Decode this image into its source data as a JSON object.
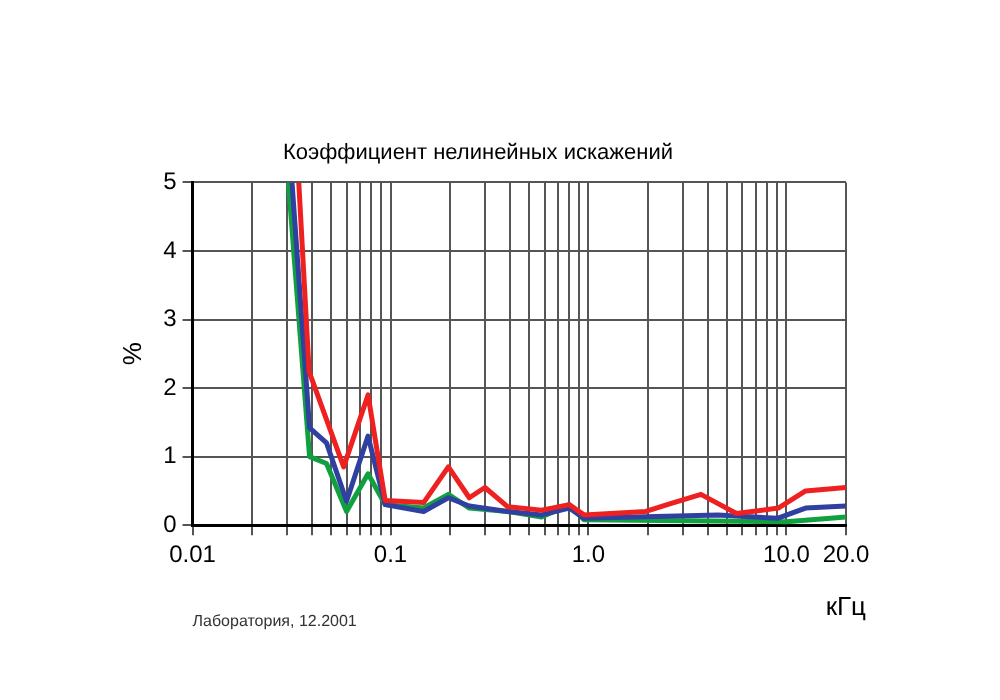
{
  "chart_data": {
    "type": "line",
    "title": "Коэффициент нелинейных искажений",
    "xlabel": "кГц",
    "ylabel": "%",
    "log": "x",
    "grid": true,
    "legend": false,
    "marker": "none",
    "line_style": "solid",
    "xlim": [
      0.01,
      20
    ],
    "ylim": [
      0,
      5
    ],
    "xticks": [
      0.01,
      {
        "value": 0.02,
        "label": null
      },
      {
        "value": 0.03,
        "label": null
      },
      {
        "value": 0.04,
        "label": null
      },
      {
        "value": 0.05,
        "label": null
      },
      {
        "value": 0.06,
        "label": null
      },
      {
        "value": 0.07,
        "label": null
      },
      {
        "value": 0.08,
        "label": null
      },
      {
        "value": 0.09,
        "label": null
      },
      0.1,
      {
        "value": 0.2,
        "label": null
      },
      {
        "value": 0.3,
        "label": null
      },
      {
        "value": 0.4,
        "label": null
      },
      {
        "value": 0.5,
        "label": null
      },
      {
        "value": 0.6,
        "label": null
      },
      {
        "value": 0.7,
        "label": null
      },
      {
        "value": 0.8,
        "label": null
      },
      {
        "value": 0.9,
        "label": null
      },
      {
        "value": 1,
        "label": "1.0"
      },
      {
        "value": 2,
        "label": null
      },
      {
        "value": 3,
        "label": null
      },
      {
        "value": 4,
        "label": null
      },
      {
        "value": 5,
        "label": null
      },
      {
        "value": 6,
        "label": null
      },
      {
        "value": 7,
        "label": null
      },
      {
        "value": 8,
        "label": null
      },
      {
        "value": 9,
        "label": null
      },
      {
        "value": 10,
        "label": "10.0"
      },
      {
        "value": 20,
        "label": "20.0"
      }
    ],
    "yticks": [
      0,
      1,
      2,
      3,
      4,
      5
    ],
    "annotations": [
      "Лаборатория, 12.2001"
    ],
    "series": [
      {
        "color": "#ee2020",
        "x": [
          0.0344,
          0.0388,
          0.058,
          0.077,
          0.094,
          0.147,
          0.196,
          0.25,
          0.3,
          0.39,
          0.58,
          0.8,
          0.95,
          1.95,
          2.5,
          3.7,
          5.6,
          9.1,
          12.5,
          20
        ],
        "values": [
          5,
          2.24,
          0.85,
          1.9,
          0.36,
          0.33,
          0.85,
          0.4,
          0.55,
          0.27,
          0.22,
          0.3,
          0.15,
          0.2,
          0.3,
          0.45,
          0.17,
          0.25,
          0.5,
          0.55
        ]
      },
      {
        "color": "#3040a0",
        "x": [
          0.0318,
          0.039,
          0.0475,
          0.06,
          0.077,
          0.094,
          0.147,
          0.196,
          0.25,
          0.39,
          0.58,
          0.8,
          0.95,
          4.5,
          9,
          12.5,
          20
        ],
        "values": [
          5,
          1.42,
          1.2,
          0.35,
          1.3,
          0.3,
          0.2,
          0.4,
          0.28,
          0.2,
          0.15,
          0.25,
          0.1,
          0.15,
          0.1,
          0.25,
          0.28
        ]
      },
      {
        "color": "#10a040",
        "x": [
          0.0305,
          0.039,
          0.0475,
          0.06,
          0.077,
          0.094,
          0.147,
          0.196,
          0.25,
          0.39,
          0.58,
          0.8,
          0.95,
          10,
          20
        ],
        "values": [
          5,
          1,
          0.9,
          0.2,
          0.75,
          0.3,
          0.25,
          0.45,
          0.25,
          0.2,
          0.12,
          0.3,
          0.08,
          0.05,
          0.12
        ]
      }
    ]
  }
}
